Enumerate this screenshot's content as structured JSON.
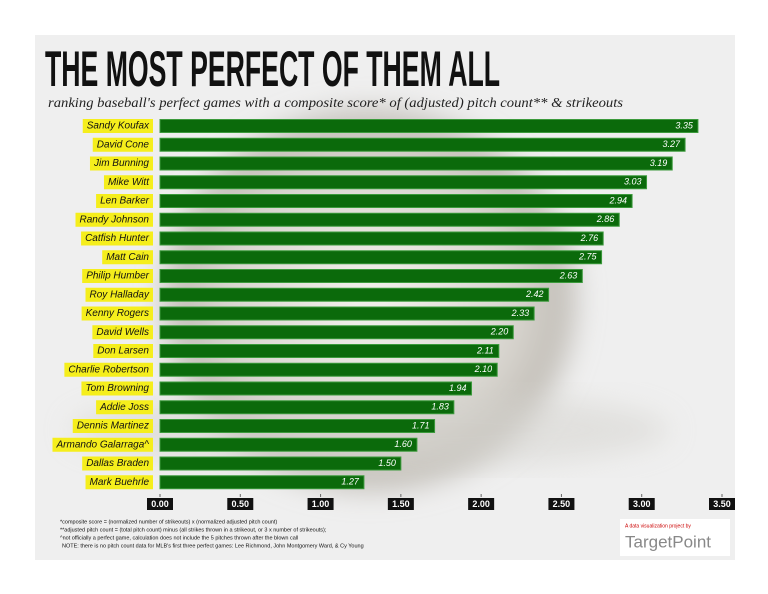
{
  "chart_data": {
    "type": "bar",
    "orientation": "horizontal",
    "title": "THE MOST PERFECT OF THEM ALL",
    "subtitle": "ranking baseball's perfect games with a composite score* of (adjusted) pitch count** & strikeouts",
    "categories": [
      "Sandy Koufax",
      "David Cone",
      "Jim Bunning",
      "Mike Witt",
      "Len Barker",
      "Randy Johnson",
      "Catfish Hunter",
      "Matt Cain",
      "Philip Humber",
      "Roy Halladay",
      "Kenny Rogers",
      "David Wells",
      "Don Larsen",
      "Charlie Robertson",
      "Tom Browning",
      "Addie Joss",
      "Dennis Martinez",
      "Armando Galarraga^",
      "Dallas Braden",
      "Mark Buehrle"
    ],
    "values": [
      3.35,
      3.27,
      3.19,
      3.03,
      2.94,
      2.86,
      2.76,
      2.75,
      2.63,
      2.42,
      2.33,
      2.2,
      2.11,
      2.1,
      1.94,
      1.83,
      1.71,
      1.6,
      1.5,
      1.27
    ],
    "value_labels": [
      "3.35",
      "3.27",
      "3.19",
      "3.03",
      "2.94",
      "2.86",
      "2.76",
      "2.75",
      "2.63",
      "2.42",
      "2.33",
      "2.20",
      "2.11",
      "2.10",
      "1.94",
      "1.83",
      "1.71",
      "1.60",
      "1.50",
      "1.27"
    ],
    "color": "#0b6a0b",
    "xlim": [
      0,
      3.5
    ],
    "xticks": [
      {
        "value": 0,
        "label": "0.00"
      },
      {
        "value": 0.5,
        "label": "0.50"
      },
      {
        "value": 1,
        "label": "1.00"
      },
      {
        "value": 1.5,
        "label": "1.50"
      },
      {
        "value": 2,
        "label": "2.00"
      },
      {
        "value": 2.5,
        "label": "2.50"
      },
      {
        "value": 3,
        "label": "3.00"
      },
      {
        "value": 3.5,
        "label": "3.50"
      }
    ],
    "footnotes": [
      "*composite score = (normalized number of strikeouts) x (normalized adjusted pitch count)",
      "**adjusted pitch count = (total pitch count) minus (all strikes thrown in a strikeout, or 3 x number of strikeouts);",
      "^not officially a perfect game, calculation does not include the 5 pitches thrown after the blown call",
      "NOTE: there is no pitch count data for MLB's first three perfect games: Lee Richmond, John Montgomery Ward, & Cy Young"
    ],
    "credit": "A data visualization project by",
    "logo": "TargetPoint"
  }
}
